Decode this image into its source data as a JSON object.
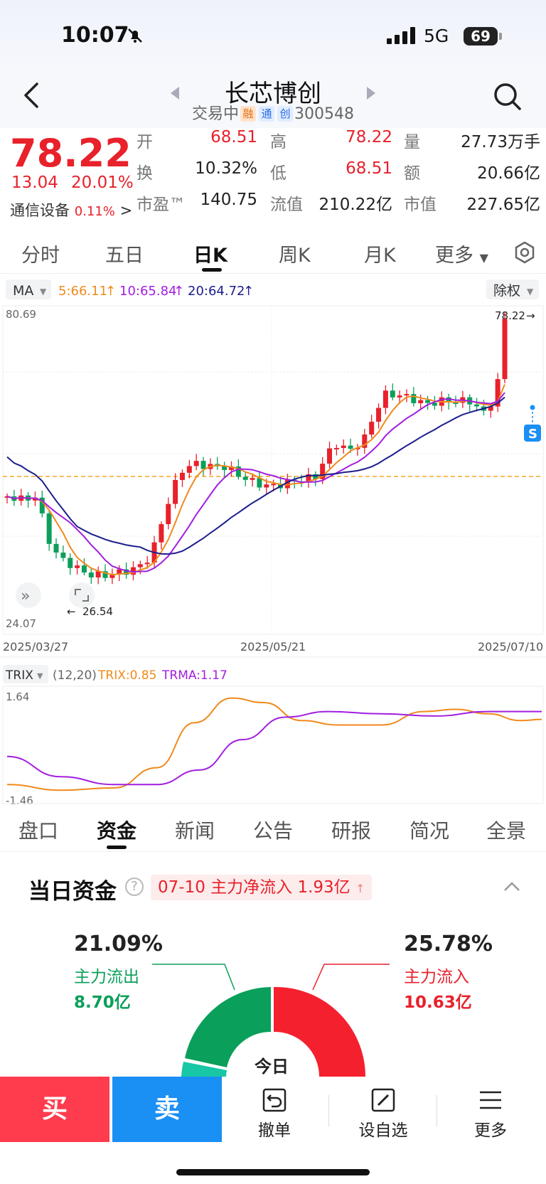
{
  "status": {
    "time": "10:07",
    "network": "5G",
    "battery": "69"
  },
  "header": {
    "title": "长芯博创",
    "status_text": "交易中",
    "badges": [
      "融",
      "通",
      "创"
    ],
    "code": "300548"
  },
  "quote": {
    "price": "78.22",
    "change": "13.04",
    "change_pct": "20.01%",
    "sector": "通信设备",
    "sector_pct": "0.11%",
    "open_label": "开",
    "open": "68.51",
    "high_label": "高",
    "high": "78.22",
    "vol_label": "量",
    "vol": "27.73万手",
    "turnover_label": "换",
    "turnover": "10.32%",
    "low_label": "低",
    "low": "68.51",
    "amount_label": "额",
    "amount": "20.66亿",
    "pe_label": "市盈™",
    "pe": "140.75",
    "float_label": "流值",
    "float": "210.22亿",
    "mcap_label": "市值",
    "mcap": "227.65亿"
  },
  "tabs": [
    "分时",
    "五日",
    "日K",
    "周K",
    "月K",
    "更多"
  ],
  "chart": {
    "ma_selector": "MA",
    "ma5": "5:66.11",
    "ma10": "10:65.84",
    "ma20": "20:64.72",
    "adjust": "除权",
    "y_max": "80.69",
    "y_min": "24.07",
    "last_price": "78.22",
    "low_mark": "26.54",
    "dates": [
      "2025/03/27",
      "2025/05/21",
      "2025/07/10"
    ],
    "s_badge": "S",
    "trix_selector": "TRIX",
    "trix_params": "(12,20)",
    "trix": "TRIX:0.85",
    "trma": "TRMA:1.17",
    "trix_max": "1.64",
    "trix_min": "-1.46",
    "colors": {
      "up": "#e8212b",
      "down": "#0a9f5a",
      "ma5": "#f08a1c",
      "ma10": "#a21ee0",
      "ma20": "#1c1e8c"
    }
  },
  "chart_data": {
    "type": "candlestick",
    "x_range": [
      "2025/03/27",
      "2025/07/10"
    ],
    "y_range": [
      24.07,
      80.69
    ],
    "last_close": 78.22,
    "marked_low": 26.54,
    "ma": {
      "MA5": 66.11,
      "MA10": 65.84,
      "MA20": 64.72
    },
    "indicator": {
      "name": "TRIX",
      "params": "12,20",
      "TRIX": 0.85,
      "TRMA": 1.17,
      "range": [
        -1.46,
        1.64
      ]
    }
  },
  "sub_tabs": [
    "盘口",
    "资金",
    "新闻",
    "公告",
    "研报",
    "简况",
    "全景"
  ],
  "fund": {
    "title": "当日资金",
    "flow_badge": "07-10 主力净流入 1.93亿",
    "out_pct": "21.09%",
    "out_label": "主力流出",
    "out_amount": "8.70亿",
    "in_pct": "25.78%",
    "in_label": "主力流入",
    "in_amount": "10.63亿",
    "center_label": "今日"
  },
  "bottom": {
    "buy": "买",
    "sell": "卖",
    "cancel": "撤单",
    "watch": "设自选",
    "more": "更多"
  }
}
